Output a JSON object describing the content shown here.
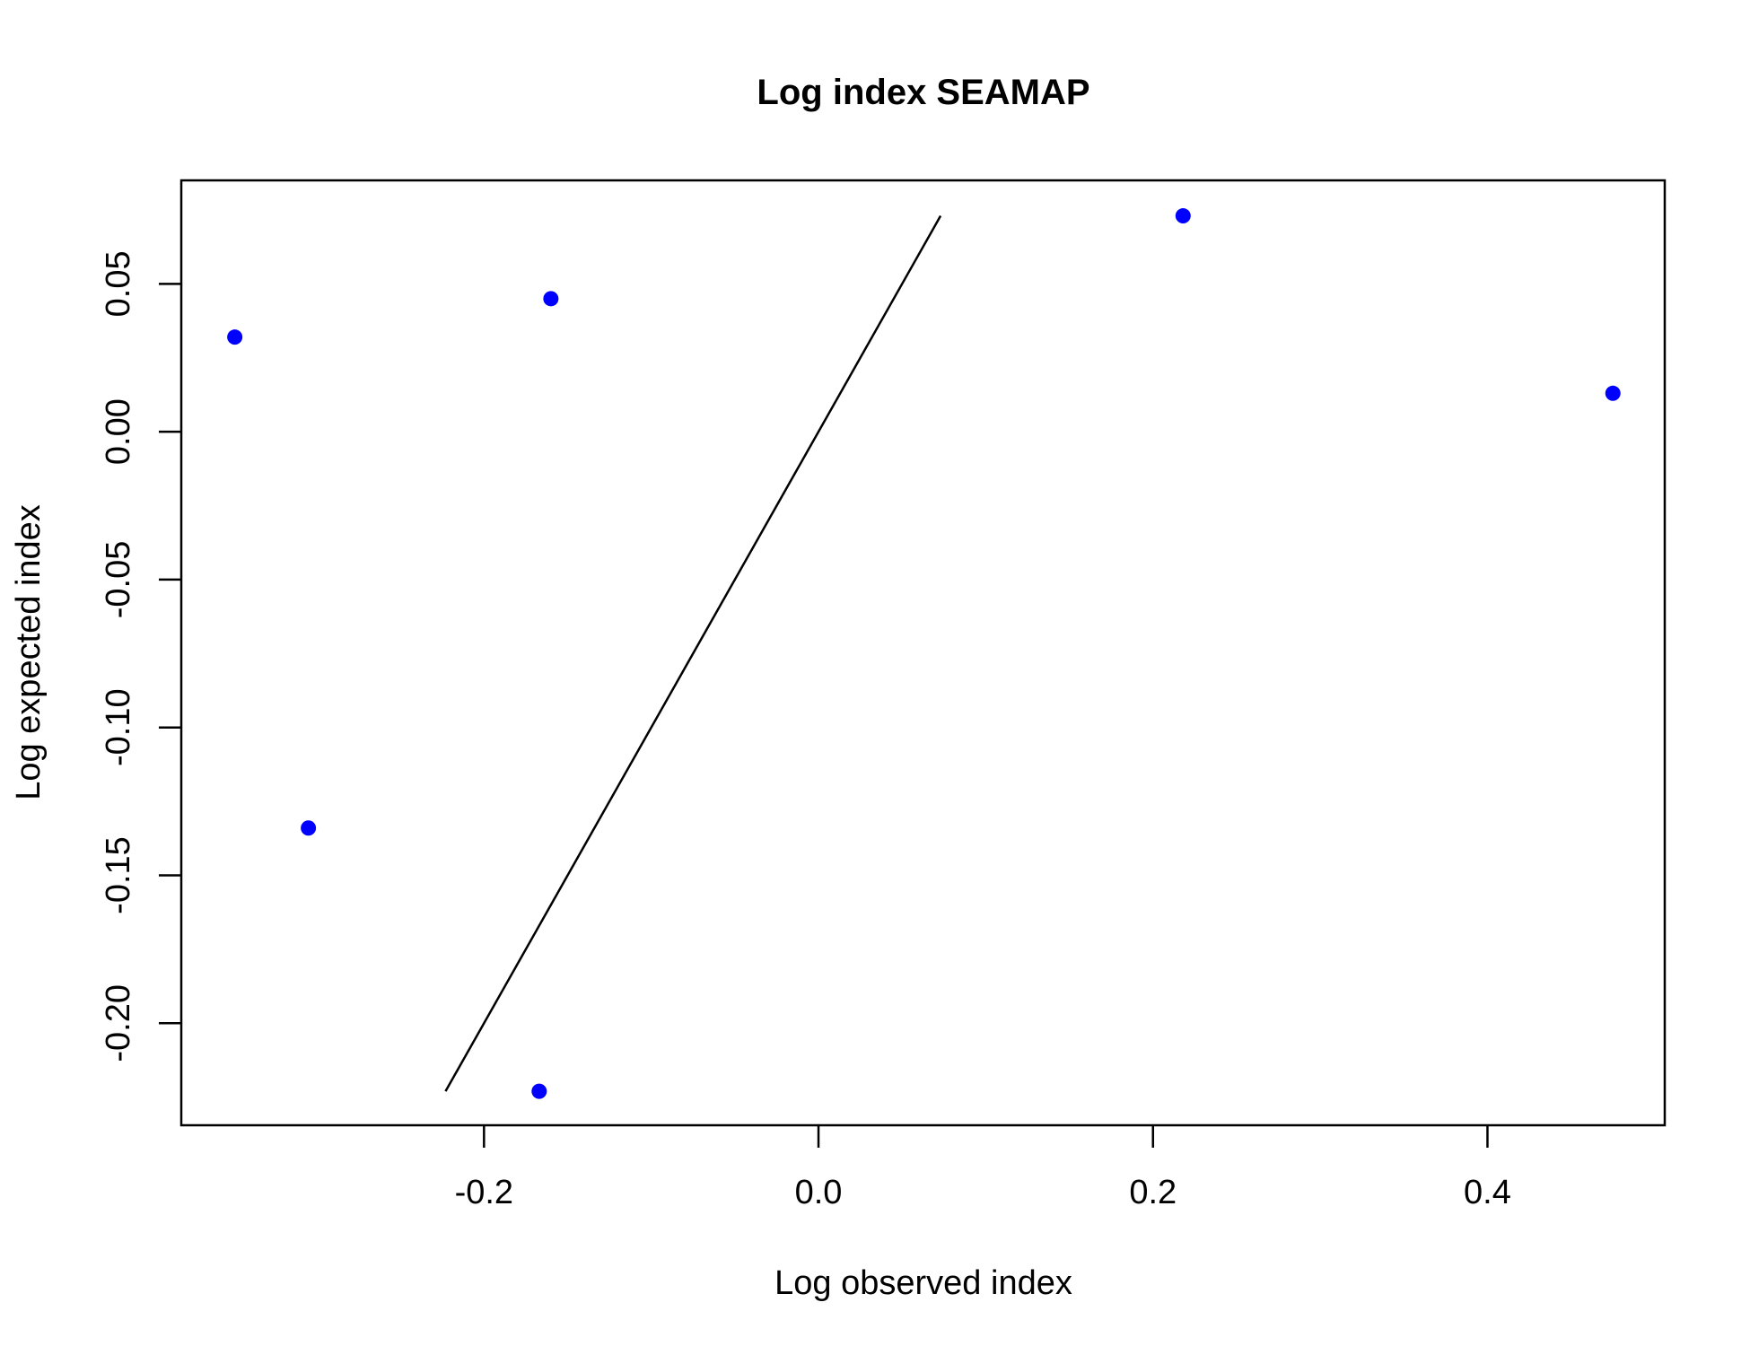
{
  "chart_data": {
    "type": "scatter",
    "title": "Log index SEAMAP",
    "xlabel": "Log observed index",
    "ylabel": "Log expected index",
    "xlim": [
      -0.381,
      0.506
    ],
    "ylim": [
      -0.2345,
      0.085
    ],
    "x_ticks": [
      -0.2,
      0.0,
      0.2,
      0.4
    ],
    "x_tick_labels": [
      "-0.2",
      "0.0",
      "0.2",
      "0.4"
    ],
    "y_ticks": [
      -0.2,
      -0.15,
      -0.1,
      -0.05,
      0.0,
      0.05
    ],
    "y_tick_labels": [
      "-0.20",
      "-0.15",
      "-0.10",
      "-0.05",
      "0.00",
      "0.05"
    ],
    "points": {
      "x": [
        -0.349,
        -0.305,
        -0.16,
        -0.167,
        0.218,
        0.475
      ],
      "y": [
        0.032,
        -0.134,
        0.045,
        -0.223,
        0.073,
        0.013
      ]
    },
    "reference_line": {
      "x": [
        -0.223,
        0.073
      ],
      "y": [
        -0.223,
        0.073
      ]
    },
    "grid": false,
    "point_color": "#0000ff",
    "line_color": "#000000"
  }
}
